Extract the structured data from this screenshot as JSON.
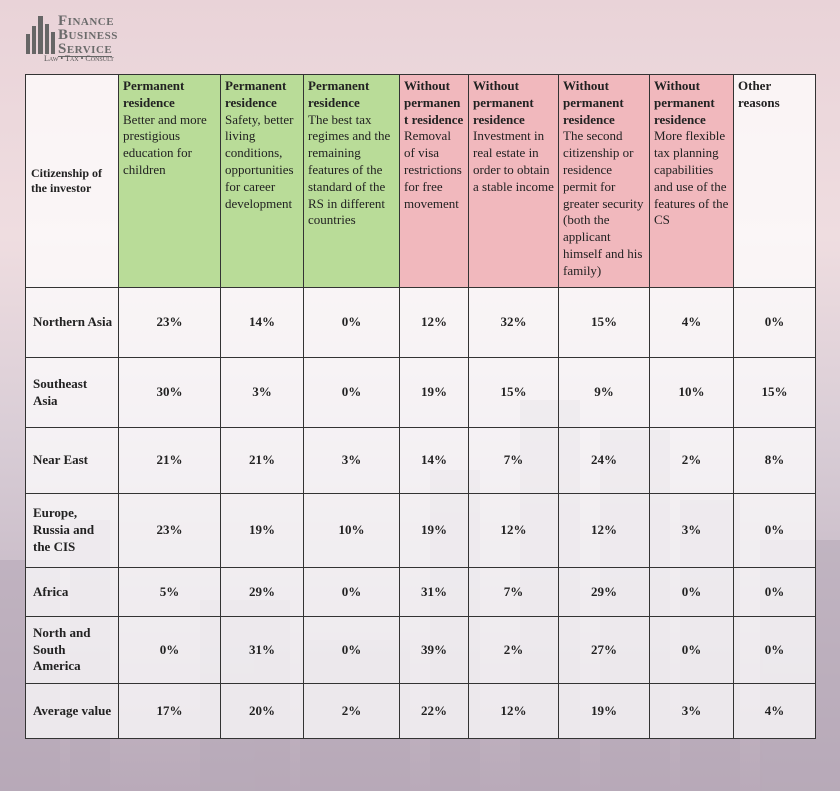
{
  "logo": {
    "lines": [
      "Finance",
      "Business",
      "Service"
    ],
    "tagline": "Law • Tax • Consult"
  },
  "table": {
    "corner": "Citizenship of the investor",
    "columns": [
      {
        "title": "Permanent residence",
        "text": "Better and more prestigious education for children",
        "group": "green"
      },
      {
        "title": "Permanent residence",
        "text": "Safety, better living conditions, opportunities for career development",
        "group": "green"
      },
      {
        "title": "Permanent residence",
        "text": "The best tax regimes and the remaining features of the standard of the RS in different countries",
        "group": "green"
      },
      {
        "title": "Without permanent residence",
        "text": "Removal of visa restrictions for free movement",
        "group": "pink"
      },
      {
        "title": "Without permanent residence",
        "text": "Investment in real estate in order to obtain a stable income",
        "group": "pink"
      },
      {
        "title": "Without permanent residence",
        "text": "The second citizenship or residence permit for greater security (both the applicant himself and his family)",
        "group": "pink"
      },
      {
        "title": "Without permanent residence",
        "text": "More flexible tax planning capabilities and use of the features of the CS",
        "group": "pink"
      },
      {
        "title": "Other reasons",
        "group": "white"
      }
    ],
    "rows": [
      {
        "label": "Northern Asia",
        "cells": [
          "23%",
          "14%",
          "0%",
          "12%",
          "32%",
          "15%",
          "4%",
          "0%"
        ]
      },
      {
        "label": "Southeast Asia",
        "cells": [
          "30%",
          "3%",
          "0%",
          "19%",
          "15%",
          "9%",
          "10%",
          "15%"
        ]
      },
      {
        "label": "Near East",
        "cells": [
          "21%",
          "21%",
          "3%",
          "14%",
          "7%",
          "24%",
          "2%",
          "8%"
        ]
      },
      {
        "label": "Europe, Russia and the CIS",
        "cells": [
          "23%",
          "19%",
          "10%",
          "19%",
          "12%",
          "12%",
          "3%",
          "0%"
        ]
      },
      {
        "label": "Africa",
        "cells": [
          "5%",
          "29%",
          "0%",
          "31%",
          "7%",
          "29%",
          "0%",
          "0%"
        ]
      },
      {
        "label": "North and South America",
        "cells": [
          "0%",
          "31%",
          "0%",
          "39%",
          "2%",
          "27%",
          "0%",
          "0%"
        ]
      },
      {
        "label": "Average value",
        "cells": [
          "17%",
          "20%",
          "2%",
          "22%",
          "12%",
          "19%",
          "3%",
          "4%"
        ]
      }
    ]
  }
}
